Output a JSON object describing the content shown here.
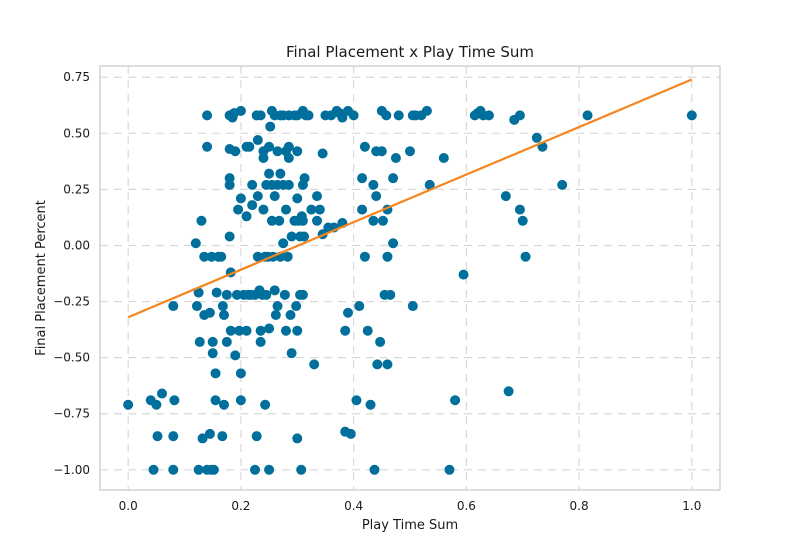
{
  "chart_data": {
    "type": "scatter",
    "title": "Final Placement x Play Time Sum",
    "xlabel": "Play Time Sum",
    "ylabel": "Final Placement Percent",
    "xlim": [
      -0.05,
      1.05
    ],
    "ylim": [
      -1.09,
      0.8
    ],
    "x_ticks": [
      0.0,
      0.2,
      0.4,
      0.6,
      0.8,
      1.0
    ],
    "y_ticks": [
      -1.0,
      -0.75,
      -0.5,
      -0.25,
      0.0,
      0.25,
      0.5,
      0.75
    ],
    "x_tick_labels": [
      "0.0",
      "0.2",
      "0.4",
      "0.6",
      "0.8",
      "1.0"
    ],
    "y_tick_labels": [
      "−1.00",
      "−0.75",
      "−0.50",
      "−0.25",
      "0.00",
      "0.25",
      "0.50",
      "0.75"
    ],
    "grid": true,
    "grid_style": "dashed",
    "colors": {
      "points": "#006f9b",
      "trend": "#f5851f",
      "grid": "#d9d9d9",
      "frame": "#c8c8c8"
    },
    "trend_line": {
      "x": [
        0.0,
        1.0
      ],
      "y": [
        -0.32,
        0.74
      ]
    },
    "points": [
      [
        0.0,
        -0.71
      ],
      [
        0.04,
        -0.69
      ],
      [
        0.045,
        -1.0
      ],
      [
        0.05,
        -0.71
      ],
      [
        0.052,
        -0.85
      ],
      [
        0.06,
        -0.66
      ],
      [
        0.08,
        -1.0
      ],
      [
        0.08,
        -0.85
      ],
      [
        0.082,
        -0.69
      ],
      [
        0.08,
        -0.27
      ],
      [
        0.12,
        0.01
      ],
      [
        0.122,
        -0.27
      ],
      [
        0.125,
        -0.21
      ],
      [
        0.127,
        -0.43
      ],
      [
        0.125,
        -1.0
      ],
      [
        0.132,
        -0.86
      ],
      [
        0.13,
        0.11
      ],
      [
        0.135,
        -0.05
      ],
      [
        0.135,
        -0.31
      ],
      [
        0.14,
        0.44
      ],
      [
        0.14,
        0.58
      ],
      [
        0.145,
        -0.3
      ],
      [
        0.14,
        -1.0
      ],
      [
        0.145,
        -0.84
      ],
      [
        0.148,
        -0.05
      ],
      [
        0.148,
        -1.0
      ],
      [
        0.15,
        -0.43
      ],
      [
        0.15,
        -0.48
      ],
      [
        0.152,
        -1.0
      ],
      [
        0.155,
        -0.57
      ],
      [
        0.157,
        -0.21
      ],
      [
        0.155,
        -0.69
      ],
      [
        0.16,
        -0.05
      ],
      [
        0.165,
        -0.05
      ],
      [
        0.167,
        -0.85
      ],
      [
        0.168,
        -0.27
      ],
      [
        0.17,
        -0.31
      ],
      [
        0.17,
        -0.71
      ],
      [
        0.175,
        -0.22
      ],
      [
        0.175,
        -0.43
      ],
      [
        0.18,
        0.58
      ],
      [
        0.18,
        0.43
      ],
      [
        0.18,
        0.3
      ],
      [
        0.18,
        0.27
      ],
      [
        0.18,
        0.04
      ],
      [
        0.182,
        -0.12
      ],
      [
        0.182,
        -0.38
      ],
      [
        0.185,
        0.57
      ],
      [
        0.188,
        0.59
      ],
      [
        0.19,
        0.42
      ],
      [
        0.19,
        -0.49
      ],
      [
        0.193,
        -0.22
      ],
      [
        0.195,
        0.16
      ],
      [
        0.197,
        -0.38
      ],
      [
        0.2,
        0.6
      ],
      [
        0.2,
        0.21
      ],
      [
        0.2,
        -0.57
      ],
      [
        0.2,
        -0.69
      ],
      [
        0.205,
        -0.22
      ],
      [
        0.21,
        0.44
      ],
      [
        0.21,
        0.13
      ],
      [
        0.21,
        -0.38
      ],
      [
        0.213,
        -0.22
      ],
      [
        0.215,
        0.44
      ],
      [
        0.218,
        -0.22
      ],
      [
        0.22,
        0.18
      ],
      [
        0.22,
        0.27
      ],
      [
        0.225,
        -0.22
      ],
      [
        0.225,
        -1.0
      ],
      [
        0.228,
        0.58
      ],
      [
        0.228,
        -0.85
      ],
      [
        0.23,
        0.47
      ],
      [
        0.23,
        0.22
      ],
      [
        0.23,
        -0.05
      ],
      [
        0.233,
        -0.2
      ],
      [
        0.235,
        0.58
      ],
      [
        0.235,
        -0.38
      ],
      [
        0.235,
        -0.43
      ],
      [
        0.238,
        -0.22
      ],
      [
        0.24,
        0.42
      ],
      [
        0.24,
        0.39
      ],
      [
        0.24,
        0.16
      ],
      [
        0.243,
        -0.05
      ],
      [
        0.243,
        -0.71
      ],
      [
        0.245,
        0.27
      ],
      [
        0.245,
        -0.22
      ],
      [
        0.248,
        -0.05
      ],
      [
        0.25,
        0.44
      ],
      [
        0.25,
        0.32
      ],
      [
        0.25,
        -0.37
      ],
      [
        0.25,
        -1.0
      ],
      [
        0.252,
        0.53
      ],
      [
        0.255,
        0.6
      ],
      [
        0.255,
        0.27
      ],
      [
        0.255,
        0.11
      ],
      [
        0.257,
        -0.05
      ],
      [
        0.26,
        0.58
      ],
      [
        0.26,
        0.22
      ],
      [
        0.26,
        -0.2
      ],
      [
        0.262,
        -0.31
      ],
      [
        0.265,
        0.42
      ],
      [
        0.265,
        0.27
      ],
      [
        0.265,
        -0.27
      ],
      [
        0.268,
        0.11
      ],
      [
        0.27,
        0.58
      ],
      [
        0.27,
        0.32
      ],
      [
        0.27,
        -0.05
      ],
      [
        0.275,
        0.58
      ],
      [
        0.275,
        0.27
      ],
      [
        0.275,
        0.01
      ],
      [
        0.278,
        -0.22
      ],
      [
        0.28,
        0.42
      ],
      [
        0.28,
        0.16
      ],
      [
        0.28,
        -0.38
      ],
      [
        0.283,
        -0.05
      ],
      [
        0.285,
        0.58
      ],
      [
        0.285,
        0.44
      ],
      [
        0.285,
        0.27
      ],
      [
        0.285,
        0.39
      ],
      [
        0.288,
        -0.31
      ],
      [
        0.29,
        0.04
      ],
      [
        0.29,
        -0.48
      ],
      [
        0.295,
        0.58
      ],
      [
        0.295,
        0.11
      ],
      [
        0.298,
        -0.27
      ],
      [
        0.3,
        0.58
      ],
      [
        0.3,
        0.42
      ],
      [
        0.3,
        0.21
      ],
      [
        0.3,
        -0.38
      ],
      [
        0.3,
        -0.86
      ],
      [
        0.302,
        0.11
      ],
      [
        0.305,
        -0.22
      ],
      [
        0.305,
        0.04
      ],
      [
        0.307,
        -1.0
      ],
      [
        0.308,
        0.13
      ],
      [
        0.31,
        0.6
      ],
      [
        0.31,
        0.27
      ],
      [
        0.31,
        0.11
      ],
      [
        0.31,
        -0.22
      ],
      [
        0.312,
        0.04
      ],
      [
        0.313,
        0.3
      ],
      [
        0.315,
        0.58
      ],
      [
        0.32,
        0.58
      ],
      [
        0.325,
        0.16
      ],
      [
        0.33,
        -0.53
      ],
      [
        0.335,
        0.22
      ],
      [
        0.335,
        0.11
      ],
      [
        0.34,
        0.16
      ],
      [
        0.345,
        0.41
      ],
      [
        0.345,
        0.05
      ],
      [
        0.35,
        0.58
      ],
      [
        0.355,
        0.08
      ],
      [
        0.36,
        0.58
      ],
      [
        0.365,
        0.08
      ],
      [
        0.37,
        0.6
      ],
      [
        0.375,
        0.59
      ],
      [
        0.38,
        0.57
      ],
      [
        0.38,
        0.1
      ],
      [
        0.385,
        -0.83
      ],
      [
        0.385,
        -0.38
      ],
      [
        0.39,
        0.6
      ],
      [
        0.39,
        -0.3
      ],
      [
        0.395,
        -0.84
      ],
      [
        0.4,
        0.58
      ],
      [
        0.405,
        -0.69
      ],
      [
        0.41,
        -0.27
      ],
      [
        0.415,
        0.3
      ],
      [
        0.415,
        0.16
      ],
      [
        0.42,
        0.44
      ],
      [
        0.42,
        -0.05
      ],
      [
        0.425,
        -0.38
      ],
      [
        0.43,
        -0.71
      ],
      [
        0.435,
        0.27
      ],
      [
        0.435,
        0.11
      ],
      [
        0.437,
        -1.0
      ],
      [
        0.44,
        0.42
      ],
      [
        0.44,
        0.22
      ],
      [
        0.442,
        -0.53
      ],
      [
        0.447,
        -0.43
      ],
      [
        0.45,
        0.6
      ],
      [
        0.45,
        0.42
      ],
      [
        0.452,
        0.11
      ],
      [
        0.455,
        -0.22
      ],
      [
        0.458,
        0.58
      ],
      [
        0.46,
        0.16
      ],
      [
        0.46,
        -0.05
      ],
      [
        0.46,
        -0.53
      ],
      [
        0.465,
        -0.22
      ],
      [
        0.47,
        0.3
      ],
      [
        0.47,
        0.01
      ],
      [
        0.475,
        0.39
      ],
      [
        0.48,
        0.58
      ],
      [
        0.5,
        0.42
      ],
      [
        0.505,
        0.58
      ],
      [
        0.505,
        -0.27
      ],
      [
        0.51,
        0.58
      ],
      [
        0.52,
        0.58
      ],
      [
        0.53,
        0.6
      ],
      [
        0.535,
        0.27
      ],
      [
        0.56,
        0.39
      ],
      [
        0.57,
        -1.0
      ],
      [
        0.58,
        -0.69
      ],
      [
        0.595,
        -0.13
      ],
      [
        0.615,
        0.58
      ],
      [
        0.62,
        0.59
      ],
      [
        0.625,
        0.6
      ],
      [
        0.63,
        0.58
      ],
      [
        0.64,
        0.58
      ],
      [
        0.67,
        0.22
      ],
      [
        0.675,
        -0.65
      ],
      [
        0.685,
        0.56
      ],
      [
        0.695,
        0.58
      ],
      [
        0.695,
        0.16
      ],
      [
        0.7,
        0.11
      ],
      [
        0.705,
        -0.05
      ],
      [
        0.725,
        0.48
      ],
      [
        0.735,
        0.44
      ],
      [
        0.77,
        0.27
      ],
      [
        0.815,
        0.58
      ],
      [
        1.0,
        0.58
      ]
    ]
  }
}
